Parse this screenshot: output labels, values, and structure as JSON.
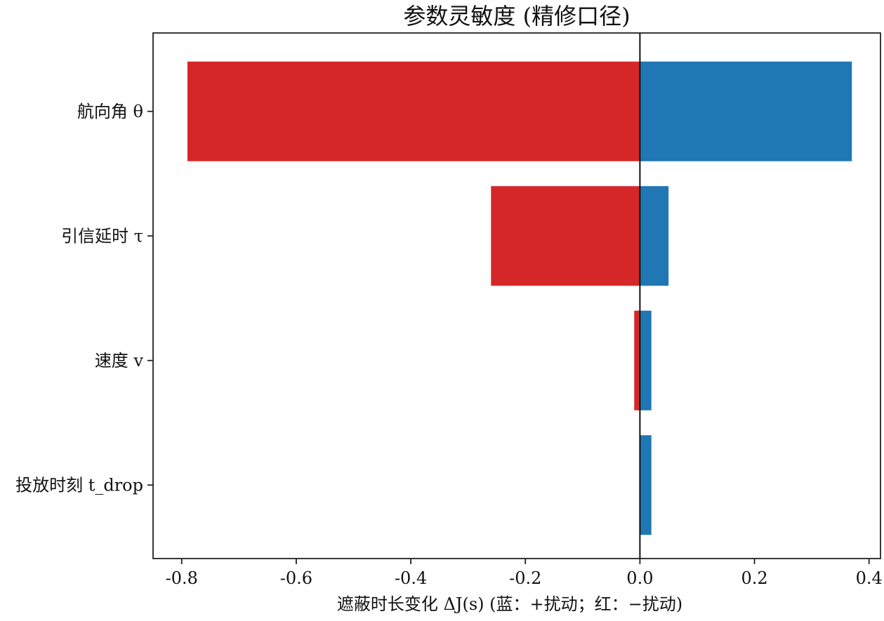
{
  "chart_data": {
    "type": "bar",
    "orientation": "horizontal",
    "title": "参数灵敏度 (精修口径)",
    "xlabel": "遮蔽时长变化 ΔJ(s) (蓝：+扰动；红：−扰动)",
    "ylabel": "",
    "categories": [
      "投放时刻 t_drop",
      "速度 v",
      "引信延时 τ",
      "航向角 θ"
    ],
    "series": [
      {
        "key": "plus",
        "values": [
          0.02,
          0.02,
          0.05,
          0.37
        ],
        "color": "#1f77b4"
      },
      {
        "key": "minus",
        "values": [
          0.0,
          -0.01,
          -0.26,
          -0.79
        ],
        "color": "#d62728"
      }
    ],
    "xlim": [
      -0.85,
      0.42
    ],
    "xticks": [
      -0.8,
      -0.6,
      -0.4,
      -0.2,
      0.0,
      0.2,
      0.4
    ],
    "xtick_labels": [
      "-0.8",
      "-0.6",
      "-0.4",
      "-0.2",
      "0.0",
      "0.2",
      "0.4"
    ],
    "zero_line": true,
    "grid": false,
    "legend": "none"
  }
}
